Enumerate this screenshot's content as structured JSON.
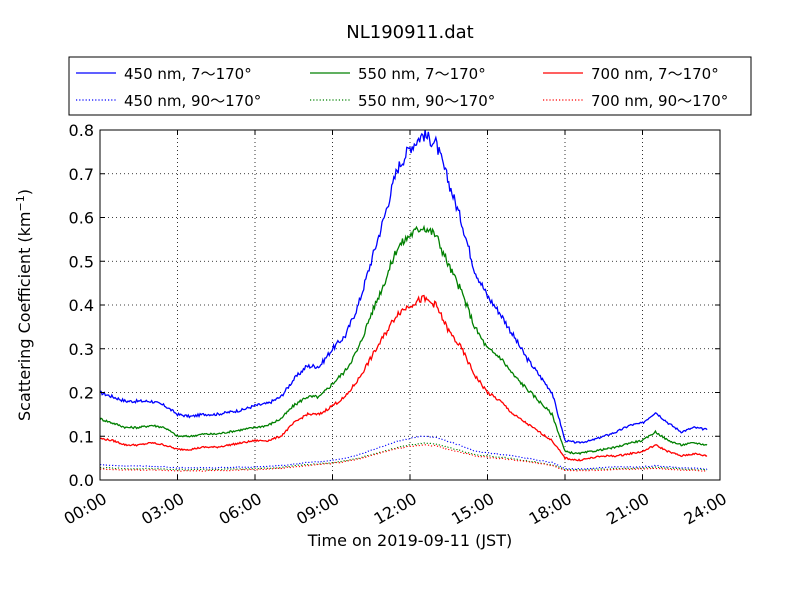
{
  "chart_data": {
    "type": "line",
    "title": "NL190911.dat",
    "xlabel": "Time on 2019-09-11 (JST)",
    "ylabel": "Scattering Coefficient (km",
    "ylabel_sup": "−1",
    "ylabel_close": ")",
    "x_unit": "hour",
    "xlim": [
      0,
      24
    ],
    "ylim": [
      0,
      0.8
    ],
    "grid": true,
    "legend_position": "above plot",
    "xticks": [
      {
        "value": 0,
        "label": "00:00"
      },
      {
        "value": 3,
        "label": "03:00"
      },
      {
        "value": 6,
        "label": "06:00"
      },
      {
        "value": 9,
        "label": "09:00"
      },
      {
        "value": 12,
        "label": "12:00"
      },
      {
        "value": 15,
        "label": "15:00"
      },
      {
        "value": 18,
        "label": "18:00"
      },
      {
        "value": 21,
        "label": "21:00"
      },
      {
        "value": 24,
        "label": "24:00"
      }
    ],
    "yticks": [
      {
        "value": 0.0,
        "label": "0.0"
      },
      {
        "value": 0.1,
        "label": "0.1"
      },
      {
        "value": 0.2,
        "label": "0.2"
      },
      {
        "value": 0.3,
        "label": "0.3"
      },
      {
        "value": 0.4,
        "label": "0.4"
      },
      {
        "value": 0.5,
        "label": "0.5"
      },
      {
        "value": 0.6,
        "label": "0.6"
      },
      {
        "value": 0.7,
        "label": "0.7"
      },
      {
        "value": 0.8,
        "label": "0.8"
      }
    ],
    "x": [
      0,
      0.5,
      1,
      1.5,
      2,
      2.5,
      3,
      3.5,
      4,
      4.5,
      5,
      5.5,
      6,
      6.5,
      7,
      7.5,
      8,
      8.5,
      9,
      9.5,
      10,
      10.5,
      11,
      11.5,
      12,
      12.5,
      13,
      13.5,
      14,
      14.5,
      15,
      15.5,
      16,
      16.5,
      17,
      17.5,
      18,
      18.5,
      19,
      19.5,
      20,
      20.5,
      21,
      21.5,
      22,
      22.5,
      23,
      23.5
    ],
    "series": [
      {
        "name": "450 nm, 7～170°",
        "color": "#0000ff",
        "style": "solid",
        "values": [
          0.2,
          0.19,
          0.18,
          0.18,
          0.18,
          0.17,
          0.15,
          0.145,
          0.15,
          0.15,
          0.155,
          0.16,
          0.17,
          0.175,
          0.19,
          0.23,
          0.26,
          0.26,
          0.3,
          0.33,
          0.4,
          0.5,
          0.6,
          0.71,
          0.76,
          0.79,
          0.77,
          0.68,
          0.59,
          0.48,
          0.42,
          0.38,
          0.33,
          0.28,
          0.24,
          0.2,
          0.09,
          0.085,
          0.09,
          0.1,
          0.11,
          0.125,
          0.13,
          0.155,
          0.13,
          0.11,
          0.12,
          0.115
        ]
      },
      {
        "name": "550 nm, 7～170°",
        "color": "#008000",
        "style": "solid",
        "values": [
          0.14,
          0.13,
          0.12,
          0.12,
          0.125,
          0.12,
          0.1,
          0.1,
          0.105,
          0.105,
          0.11,
          0.115,
          0.12,
          0.125,
          0.14,
          0.17,
          0.19,
          0.19,
          0.22,
          0.25,
          0.3,
          0.38,
          0.45,
          0.53,
          0.56,
          0.58,
          0.56,
          0.49,
          0.43,
          0.35,
          0.3,
          0.28,
          0.24,
          0.21,
          0.18,
          0.15,
          0.065,
          0.06,
          0.065,
          0.07,
          0.075,
          0.085,
          0.09,
          0.11,
          0.09,
          0.08,
          0.085,
          0.08
        ]
      },
      {
        "name": "700 nm, 7～170°",
        "color": "#ff0000",
        "style": "solid",
        "values": [
          0.095,
          0.09,
          0.08,
          0.08,
          0.085,
          0.08,
          0.07,
          0.07,
          0.075,
          0.075,
          0.08,
          0.085,
          0.09,
          0.09,
          0.1,
          0.13,
          0.15,
          0.15,
          0.17,
          0.19,
          0.23,
          0.28,
          0.33,
          0.38,
          0.4,
          0.415,
          0.4,
          0.34,
          0.3,
          0.24,
          0.2,
          0.18,
          0.15,
          0.13,
          0.11,
          0.09,
          0.05,
          0.045,
          0.05,
          0.055,
          0.055,
          0.06,
          0.065,
          0.08,
          0.065,
          0.055,
          0.06,
          0.055
        ]
      },
      {
        "name": "450 nm, 90～170°",
        "color": "#0000ff",
        "style": "dotted",
        "values": [
          0.035,
          0.033,
          0.032,
          0.032,
          0.032,
          0.03,
          0.028,
          0.028,
          0.028,
          0.028,
          0.029,
          0.029,
          0.03,
          0.031,
          0.033,
          0.036,
          0.04,
          0.042,
          0.045,
          0.05,
          0.058,
          0.068,
          0.078,
          0.088,
          0.095,
          0.1,
          0.098,
          0.088,
          0.078,
          0.066,
          0.062,
          0.058,
          0.055,
          0.05,
          0.045,
          0.04,
          0.026,
          0.025,
          0.027,
          0.028,
          0.03,
          0.03,
          0.03,
          0.033,
          0.03,
          0.028,
          0.027,
          0.025
        ]
      },
      {
        "name": "550 nm, 90～170°",
        "color": "#008000",
        "style": "dotted",
        "values": [
          0.028,
          0.027,
          0.026,
          0.026,
          0.026,
          0.025,
          0.024,
          0.024,
          0.024,
          0.024,
          0.025,
          0.025,
          0.026,
          0.027,
          0.029,
          0.032,
          0.035,
          0.037,
          0.04,
          0.044,
          0.05,
          0.058,
          0.066,
          0.074,
          0.08,
          0.084,
          0.082,
          0.074,
          0.066,
          0.058,
          0.055,
          0.052,
          0.049,
          0.044,
          0.04,
          0.035,
          0.024,
          0.023,
          0.024,
          0.025,
          0.026,
          0.026,
          0.027,
          0.029,
          0.027,
          0.025,
          0.024,
          0.023
        ]
      },
      {
        "name": "700 nm, 90～170°",
        "color": "#ff0000",
        "style": "dotted",
        "values": [
          0.025,
          0.024,
          0.023,
          0.023,
          0.023,
          0.022,
          0.021,
          0.021,
          0.021,
          0.022,
          0.022,
          0.023,
          0.024,
          0.025,
          0.027,
          0.03,
          0.033,
          0.035,
          0.038,
          0.042,
          0.048,
          0.056,
          0.064,
          0.072,
          0.077,
          0.08,
          0.078,
          0.07,
          0.063,
          0.055,
          0.052,
          0.049,
          0.046,
          0.042,
          0.038,
          0.033,
          0.022,
          0.021,
          0.022,
          0.023,
          0.024,
          0.024,
          0.025,
          0.027,
          0.025,
          0.023,
          0.022,
          0.021
        ]
      }
    ]
  }
}
